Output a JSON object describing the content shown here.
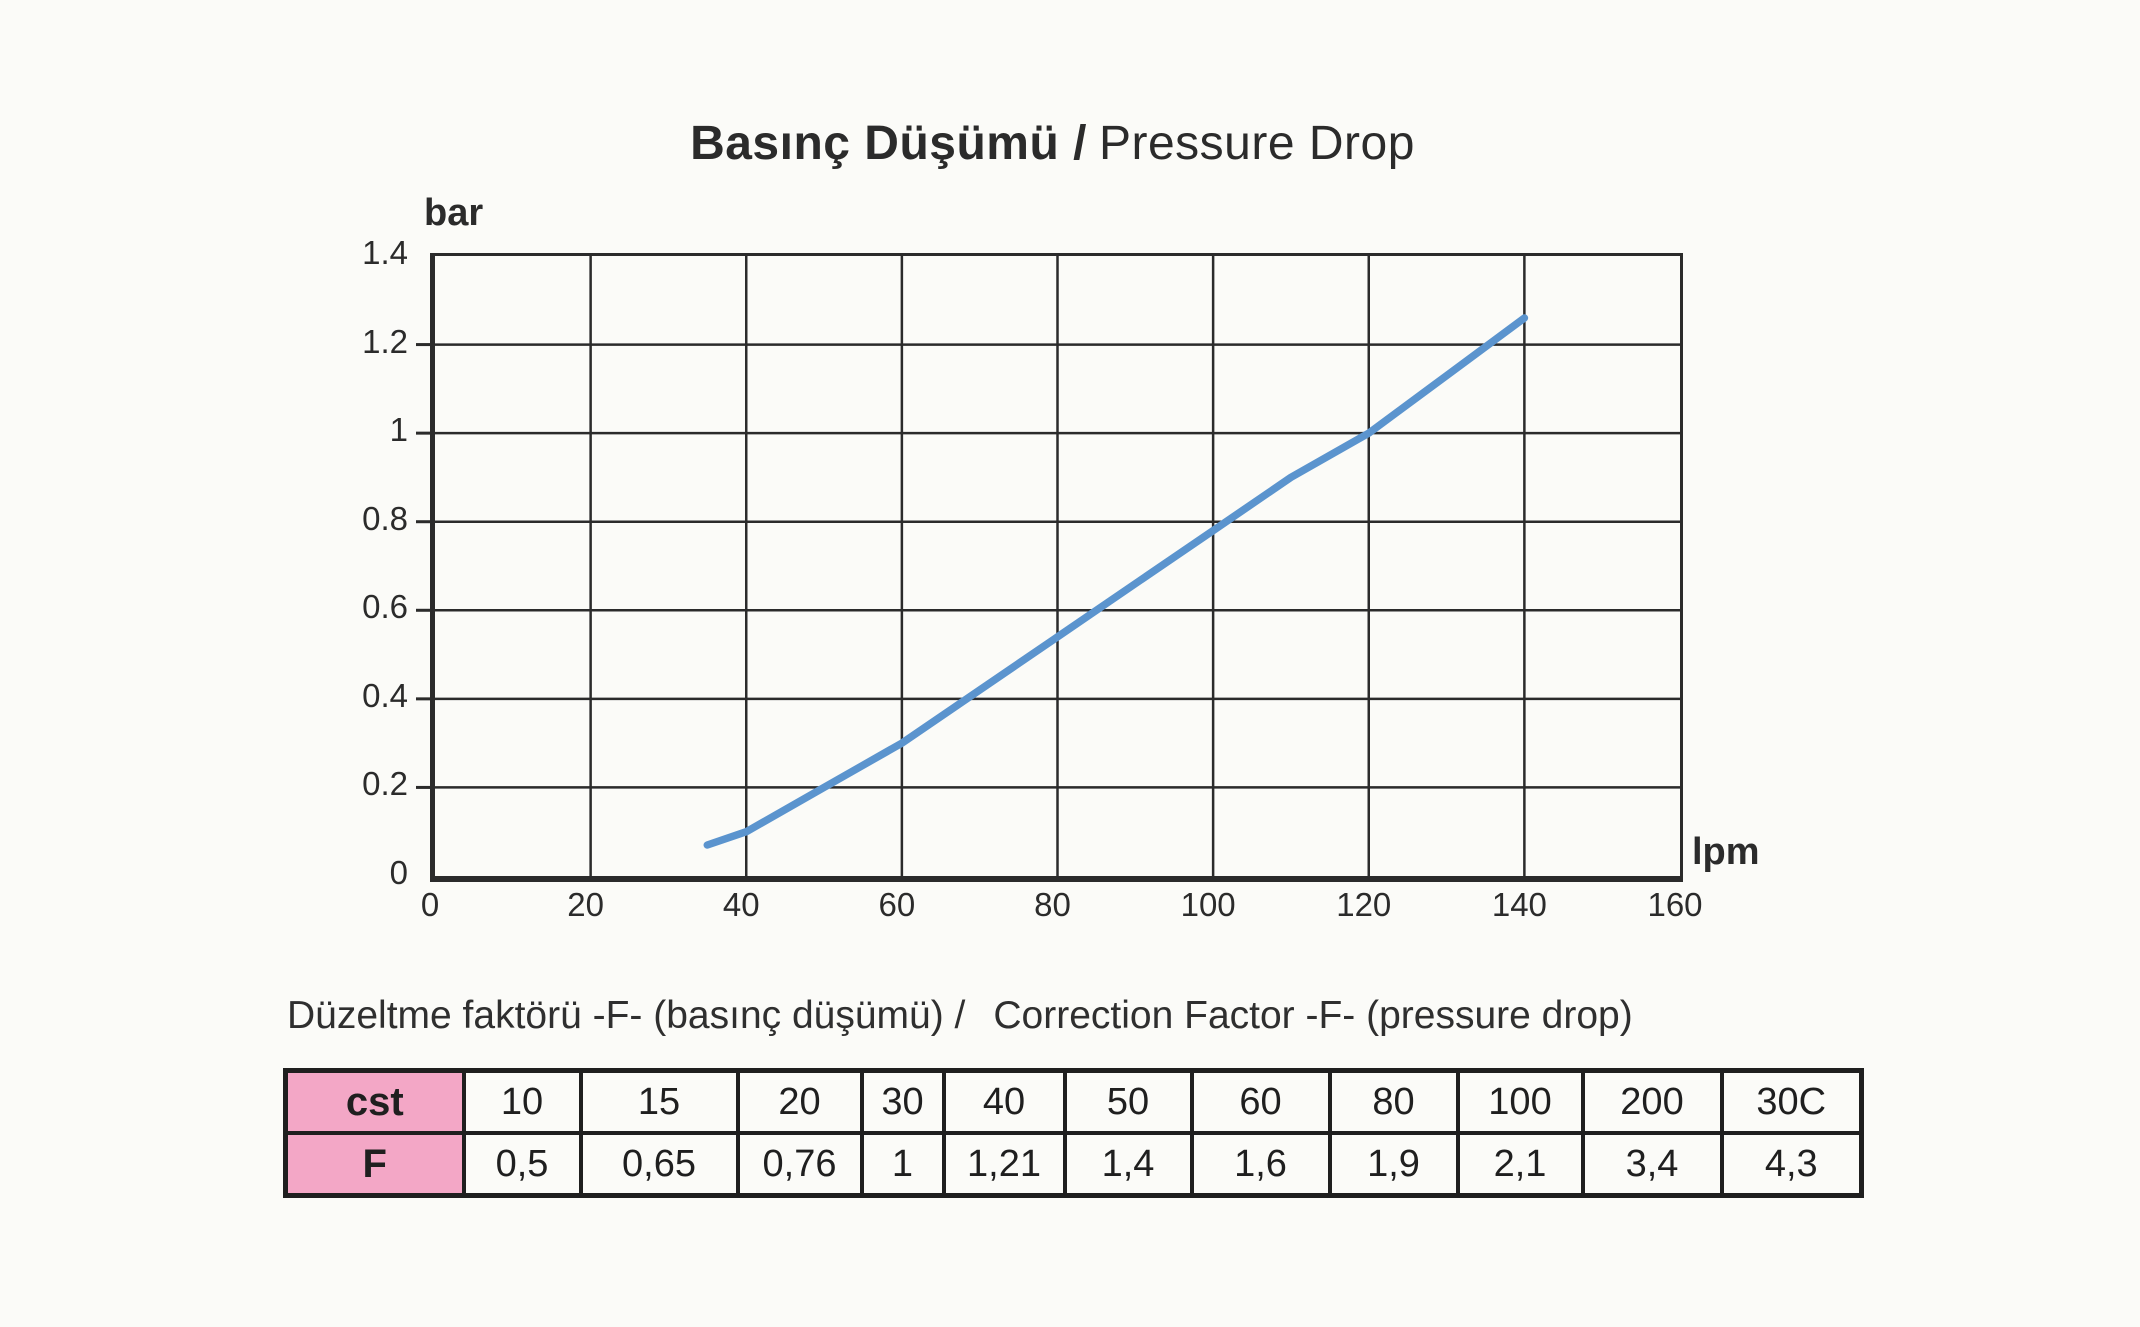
{
  "chart": {
    "title_bold": "Basınç Düşümü /",
    "title_regular": "Pressure Drop",
    "y_axis_unit": "bar",
    "x_axis_unit": "lpm"
  },
  "chart_data": {
    "type": "line",
    "title": "Basınç Düşümü / Pressure Drop",
    "xlabel": "lpm",
    "ylabel": "bar",
    "xlim": [
      0,
      160
    ],
    "ylim": [
      0,
      1.4
    ],
    "x_ticks": [
      0,
      20,
      40,
      60,
      80,
      100,
      120,
      140,
      160
    ],
    "x_tick_labels": [
      "0",
      "20",
      "40",
      "60",
      "80",
      "100",
      "120",
      "140",
      "160"
    ],
    "y_ticks": [
      0,
      0.2,
      0.4,
      0.6,
      0.8,
      1,
      1.2,
      1.4
    ],
    "y_tick_labels": [
      "0",
      "0.2",
      "0.4",
      "0.6",
      "0.8",
      "1",
      "1.2",
      "1.4"
    ],
    "grid": true,
    "legend_position": "none",
    "grid_color": "#2b2b2b",
    "series": [
      {
        "name": "pressure_drop_curve",
        "color": "#5B94CE",
        "x": [
          35,
          40,
          50,
          60,
          70,
          80,
          90,
          100,
          110,
          120,
          130,
          140
        ],
        "y": [
          0.07,
          0.1,
          0.2,
          0.3,
          0.42,
          0.54,
          0.66,
          0.78,
          0.9,
          1.0,
          1.13,
          1.26
        ]
      }
    ]
  },
  "table": {
    "title_tr": "Düzeltme faktörü -F- (basınç düşümü) /",
    "title_en": "Correction Factor -F- (pressure drop)",
    "rows": [
      {
        "header": "cst",
        "values": [
          "10",
          "15",
          "20",
          "30",
          "40",
          "50",
          "60",
          "80",
          "100",
          "200",
          "30C"
        ]
      },
      {
        "header": "F",
        "values": [
          "0,5",
          "0,65",
          "0,76",
          "1",
          "1,21",
          "1,4",
          "1,6",
          "1,9",
          "2,1",
          "3,4",
          "4,3"
        ]
      }
    ],
    "header_bg": "#F3A7C6",
    "border_color": "#1f1f1f"
  }
}
